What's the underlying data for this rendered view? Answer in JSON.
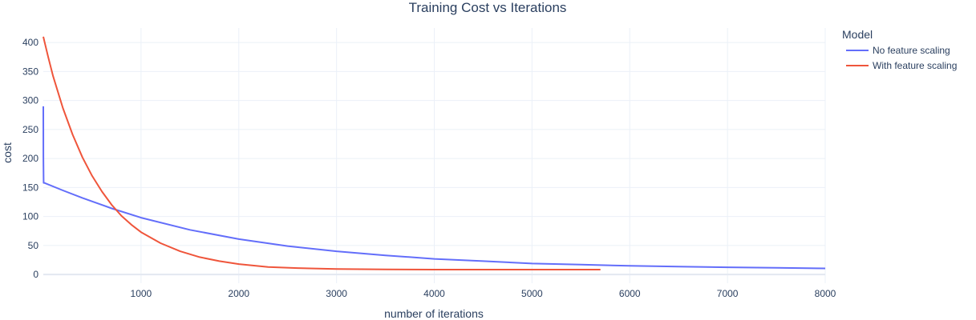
{
  "chart_data": {
    "type": "line",
    "title": "Training Cost vs Iterations",
    "xlabel": "number of iterations",
    "ylabel": "cost",
    "xlim": [
      0,
      8000
    ],
    "ylim": [
      -15,
      425
    ],
    "x_ticks": [
      1000,
      2000,
      3000,
      4000,
      5000,
      6000,
      7000,
      8000
    ],
    "y_ticks": [
      0,
      50,
      100,
      150,
      200,
      250,
      300,
      350,
      400
    ],
    "grid": true,
    "legend": {
      "title": "Model",
      "position": "right"
    },
    "series": [
      {
        "name": "No feature scaling",
        "color": "#636efa",
        "x": [
          0,
          1,
          3,
          10,
          200,
          400,
          700,
          1000,
          1500,
          2000,
          2500,
          3000,
          3500,
          4000,
          4500,
          5000,
          5500,
          6000,
          6500,
          7000,
          7500,
          8000
        ],
        "y": [
          290,
          200,
          158,
          158,
          145,
          132,
          114,
          98,
          77,
          61,
          49,
          40,
          33,
          27,
          23,
          19,
          17,
          15,
          13.5,
          12.5,
          11.5,
          10.5
        ]
      },
      {
        "name": "With feature scaling",
        "color": "#ef553b",
        "x": [
          0,
          50,
          100,
          200,
          300,
          400,
          500,
          600,
          700,
          800,
          900,
          1000,
          1200,
          1400,
          1600,
          1800,
          2000,
          2300,
          2600,
          3000,
          3500,
          4000,
          4500,
          5000,
          5700
        ],
        "y": [
          410,
          375,
          342,
          287,
          241,
          202,
          170,
          143,
          120,
          101,
          86,
          73,
          54,
          40,
          30,
          23,
          18,
          13,
          11,
          9.5,
          8.8,
          8.5,
          8.5,
          8.5,
          8.5
        ]
      }
    ]
  }
}
